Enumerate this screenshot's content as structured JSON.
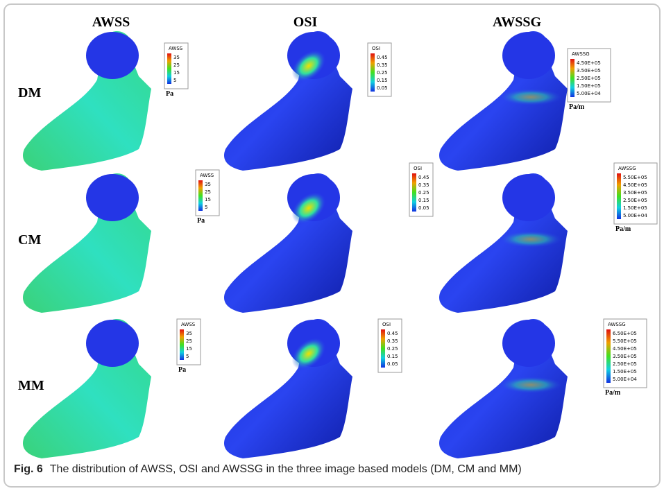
{
  "columns": [
    "AWSS",
    "OSI",
    "AWSSG"
  ],
  "rows": [
    {
      "label": "DM",
      "cells": [
        {
          "title": "AWSS",
          "ticks": [
            "35",
            "25",
            "15",
            "5"
          ],
          "unit": "Pa"
        },
        {
          "title": "OSI",
          "ticks": [
            "0.45",
            "0.35",
            "0.25",
            "0.15",
            "0.05"
          ]
        },
        {
          "title": "AWSSG",
          "ticks": [
            "4.50E+05",
            "3.50E+05",
            "2.50E+05",
            "1.50E+05",
            "5.00E+04"
          ],
          "unit": "Pa/m"
        }
      ]
    },
    {
      "label": "CM",
      "cells": [
        {
          "title": "AWSS",
          "ticks": [
            "35",
            "25",
            "15",
            "5"
          ],
          "unit": "Pa"
        },
        {
          "title": "OSI",
          "ticks": [
            "0.45",
            "0.35",
            "0.25",
            "0.15",
            "0.05"
          ]
        },
        {
          "title": "AWSSG",
          "ticks": [
            "5.50E+05",
            "4.50E+05",
            "3.50E+05",
            "2.50E+05",
            "1.50E+05",
            "5.00E+04"
          ],
          "unit": "Pa/m"
        }
      ]
    },
    {
      "label": "MM",
      "cells": [
        {
          "title": "AWSS",
          "ticks": [
            "35",
            "25",
            "15",
            "5"
          ],
          "unit": "Pa"
        },
        {
          "title": "OSI",
          "ticks": [
            "0.45",
            "0.35",
            "0.25",
            "0.15",
            "0.05"
          ]
        },
        {
          "title": "AWSSG",
          "ticks": [
            "6.50E+05",
            "5.50E+05",
            "4.50E+05",
            "3.50E+05",
            "2.50E+05",
            "1.50E+05",
            "5.00E+04"
          ],
          "unit": "Pa/m"
        }
      ]
    }
  ],
  "caption": {
    "label": "Fig. 6",
    "text": "The distribution of AWSS, OSI and AWSSG in the three image based models (DM, CM and MM)"
  }
}
